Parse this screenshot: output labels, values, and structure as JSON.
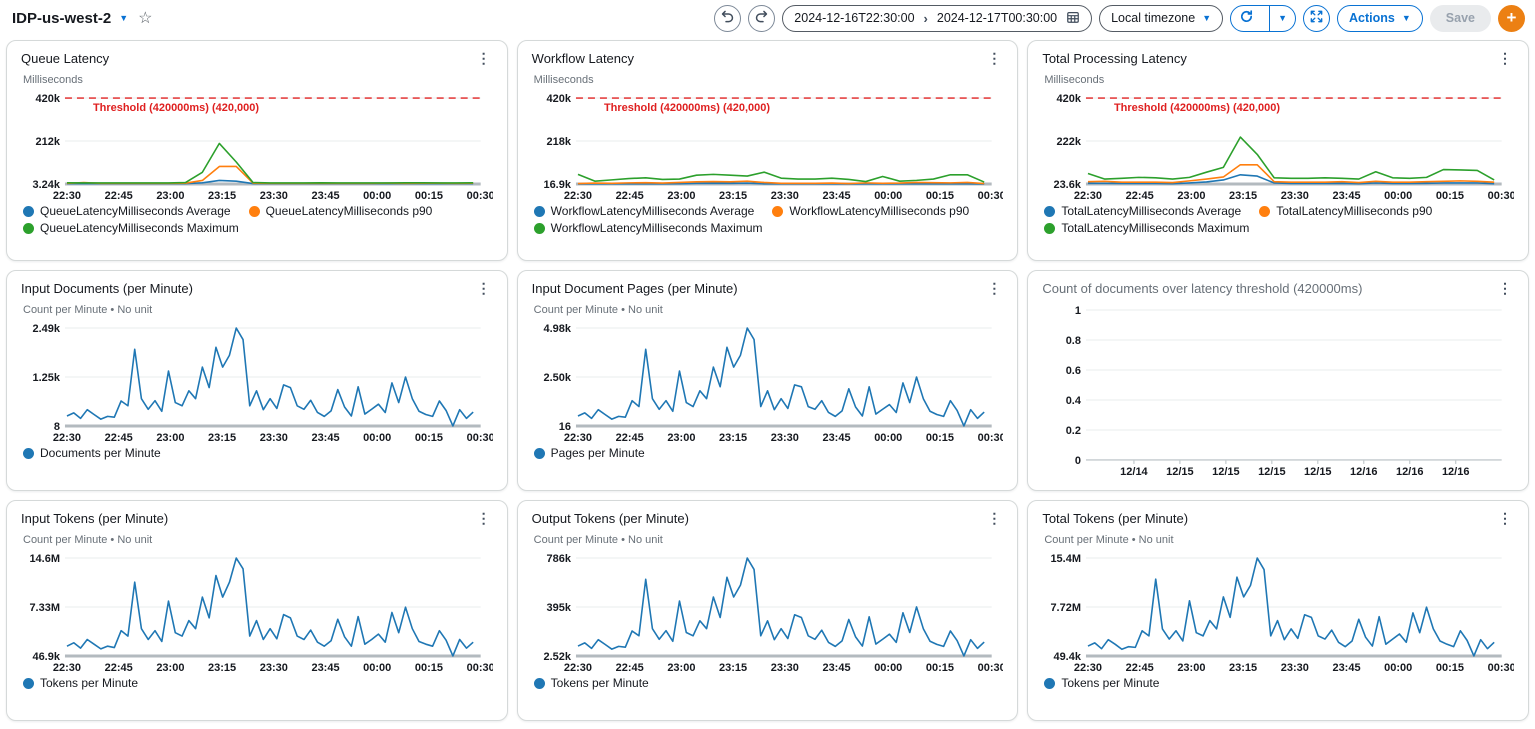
{
  "header": {
    "dashboard_name": "IDP-us-west-2",
    "time_range": {
      "start": "2024-12-16T22:30:00",
      "separator": "›",
      "end": "2024-12-17T00:30:00"
    },
    "timezone_label": "Local timezone",
    "actions_label": "Actions",
    "save_label": "Save",
    "add_label": "+"
  },
  "icons": {
    "caret": "▼",
    "star": "☆",
    "kebab": "⋮"
  },
  "colors": {
    "accent": "#0972d3",
    "add_button": "#ec8013",
    "threshold": "#df2020",
    "series_blue": "#1f77b4",
    "series_orange": "#ff7f0e",
    "series_green": "#2ca02c"
  },
  "charts": [
    {
      "id": "queue-latency",
      "title": "Queue Latency",
      "subtitle": "Milliseconds",
      "type": "line",
      "h": 112,
      "ylim": [
        3240,
        420000
      ],
      "yticks": [
        {
          "label": "420k",
          "value": 420000
        },
        {
          "label": "212k",
          "value": 211620
        },
        {
          "label": "3.24k",
          "value": 3240
        }
      ],
      "xticks": [
        "22:30",
        "22:45",
        "23:00",
        "23:15",
        "23:30",
        "23:45",
        "00:00",
        "00:15",
        "00:30"
      ],
      "threshold": {
        "label": "Threshold (420000ms) (420,000)",
        "value": 420000
      },
      "series": [
        {
          "name": "QueueLatencyMilliseconds Average",
          "color": "#1f77b4",
          "values": [
            5000,
            5000,
            5000,
            5000,
            5000,
            5000,
            5000,
            5000,
            9000,
            20000,
            17000,
            5000,
            5000,
            5000,
            5000,
            5000,
            5000,
            5000,
            5000,
            5000,
            5000,
            5000,
            5000,
            5000,
            5000
          ]
        },
        {
          "name": "QueueLatencyMilliseconds p90",
          "color": "#ff7f0e",
          "values": [
            6000,
            10000,
            6000,
            6000,
            6000,
            6000,
            6000,
            7000,
            20000,
            88000,
            88000,
            7000,
            6000,
            6000,
            6000,
            7000,
            6000,
            6000,
            6000,
            7000,
            6000,
            7000,
            7000,
            6000,
            7000
          ]
        },
        {
          "name": "QueueLatencyMilliseconds Maximum",
          "color": "#2ca02c",
          "values": [
            9000,
            8000,
            8000,
            8000,
            8000,
            8000,
            8000,
            10000,
            60000,
            200000,
            110000,
            10000,
            8000,
            8000,
            8000,
            9000,
            8000,
            8000,
            8000,
            8000,
            9000,
            9000,
            8000,
            8000,
            9000
          ]
        }
      ]
    },
    {
      "id": "workflow-latency",
      "title": "Workflow Latency",
      "subtitle": "Milliseconds",
      "type": "line",
      "h": 112,
      "ylim": [
        16900,
        420000
      ],
      "yticks": [
        {
          "label": "420k",
          "value": 420000
        },
        {
          "label": "218k",
          "value": 218450
        },
        {
          "label": "16.9k",
          "value": 16900
        }
      ],
      "xticks": [
        "22:30",
        "22:45",
        "23:00",
        "23:15",
        "23:30",
        "23:45",
        "00:00",
        "00:15",
        "00:30"
      ],
      "threshold": {
        "label": "Threshold (420000ms) (420,000)",
        "value": 420000
      },
      "series": [
        {
          "name": "WorkflowLatencyMilliseconds Average",
          "color": "#1f77b4",
          "values": [
            17000,
            17500,
            18000,
            18000,
            18000,
            18000,
            18500,
            19500,
            20000,
            20000,
            21000,
            18000,
            17500,
            17500,
            17500,
            18000,
            17000,
            18000,
            17500,
            17500,
            18000,
            18000,
            18000,
            18000,
            17000
          ]
        },
        {
          "name": "WorkflowLatencyMilliseconds p90",
          "color": "#ff7f0e",
          "values": [
            19000,
            21000,
            20000,
            22000,
            23000,
            21000,
            24000,
            27000,
            28000,
            27000,
            30000,
            24000,
            20000,
            20000,
            20000,
            21000,
            19000,
            22000,
            20000,
            21000,
            24000,
            23000,
            22000,
            24000,
            19000
          ]
        },
        {
          "name": "WorkflowLatencyMilliseconds Maximum",
          "color": "#2ca02c",
          "values": [
            62000,
            30000,
            36000,
            42000,
            46000,
            38000,
            40000,
            58000,
            62000,
            58000,
            54000,
            72000,
            44000,
            40000,
            40000,
            44000,
            38000,
            28000,
            52000,
            30000,
            34000,
            40000,
            60000,
            60000,
            26000
          ]
        }
      ]
    },
    {
      "id": "total-processing-latency",
      "title": "Total Processing Latency",
      "subtitle": "Milliseconds",
      "type": "line",
      "h": 112,
      "ylim": [
        23600,
        420000
      ],
      "yticks": [
        {
          "label": "420k",
          "value": 420000
        },
        {
          "label": "222k",
          "value": 221800
        },
        {
          "label": "23.6k",
          "value": 23600
        }
      ],
      "xticks": [
        "22:30",
        "22:45",
        "23:00",
        "23:15",
        "23:30",
        "23:45",
        "00:00",
        "00:15",
        "00:30"
      ],
      "threshold": {
        "label": "Threshold (420000ms) (420,000)",
        "value": 420000
      },
      "series": [
        {
          "name": "TotalLatencyMilliseconds Average",
          "color": "#1f77b4",
          "values": [
            27000,
            27000,
            26000,
            26000,
            26000,
            25000,
            28000,
            33000,
            42000,
            66000,
            60000,
            28000,
            26000,
            26000,
            26000,
            27000,
            25000,
            28000,
            26000,
            26000,
            27000,
            28000,
            28000,
            28000,
            25000
          ]
        },
        {
          "name": "TotalLatencyMilliseconds p90",
          "color": "#ff7f0e",
          "values": [
            34000,
            36000,
            32000,
            32000,
            32000,
            30000,
            38000,
            46000,
            56000,
            112000,
            112000,
            34000,
            32000,
            32000,
            32000,
            34000,
            30000,
            36000,
            32000,
            32000,
            34000,
            36000,
            38000,
            36000,
            32000
          ]
        },
        {
          "name": "TotalLatencyMilliseconds Maximum",
          "color": "#2ca02c",
          "values": [
            72000,
            46000,
            50000,
            54000,
            52000,
            46000,
            54000,
            78000,
            100000,
            240000,
            160000,
            52000,
            50000,
            50000,
            52000,
            50000,
            46000,
            80000,
            52000,
            50000,
            54000,
            90000,
            88000,
            86000,
            42000
          ]
        }
      ]
    },
    {
      "id": "input-documents",
      "title": "Input Documents (per Minute)",
      "subtitle": "Count per Minute • No unit",
      "type": "line",
      "h": 124,
      "ylim": [
        8,
        2490
      ],
      "yticks": [
        {
          "label": "2.49k",
          "value": 2490
        },
        {
          "label": "1.25k",
          "value": 1249
        },
        {
          "label": "8",
          "value": 8
        }
      ],
      "xticks": [
        "22:30",
        "22:45",
        "23:00",
        "23:15",
        "23:30",
        "23:45",
        "00:00",
        "00:15",
        "00:30"
      ],
      "series": [
        {
          "name": "Documents per Minute",
          "color": "#1f77b4",
          "values": [
            260,
            340,
            200,
            420,
            300,
            180,
            250,
            230,
            640,
            520,
            1950,
            700,
            430,
            650,
            380,
            1400,
            600,
            520,
            900,
            700,
            1500,
            980,
            2000,
            1500,
            1800,
            2490,
            2200,
            520,
            900,
            420,
            700,
            450,
            1050,
            980,
            520,
            430,
            660,
            350,
            250,
            390,
            930,
            490,
            260,
            1000,
            310,
            430,
            560,
            350,
            1100,
            600,
            1250,
            700,
            380,
            300,
            250,
            640,
            400,
            8,
            420,
            200,
            360
          ]
        }
      ]
    },
    {
      "id": "input-document-pages",
      "title": "Input Document Pages (per Minute)",
      "subtitle": "Count per Minute • No unit",
      "type": "line",
      "h": 124,
      "ylim": [
        16,
        4980
      ],
      "yticks": [
        {
          "label": "4.98k",
          "value": 4980
        },
        {
          "label": "2.50k",
          "value": 2498
        },
        {
          "label": "16",
          "value": 16
        }
      ],
      "xticks": [
        "22:30",
        "22:45",
        "23:00",
        "23:15",
        "23:30",
        "23:45",
        "00:00",
        "00:15",
        "00:30"
      ],
      "series": [
        {
          "name": "Pages per Minute",
          "color": "#1f77b4",
          "values": [
            520,
            680,
            400,
            840,
            600,
            360,
            500,
            460,
            1300,
            1000,
            3900,
            1400,
            860,
            1300,
            760,
            2800,
            1200,
            1000,
            1800,
            1400,
            3000,
            2000,
            4000,
            3000,
            3600,
            4980,
            4400,
            1000,
            1800,
            840,
            1400,
            900,
            2100,
            2000,
            1000,
            860,
            1300,
            700,
            500,
            780,
            1900,
            980,
            520,
            2000,
            620,
            860,
            1100,
            700,
            2200,
            1200,
            2500,
            1400,
            760,
            600,
            500,
            1300,
            800,
            16,
            840,
            400,
            720
          ]
        }
      ]
    },
    {
      "id": "docs-over-threshold",
      "title": "Count of documents over latency threshold (420000ms)",
      "muted": true,
      "type": "line",
      "h": 176,
      "ylim": [
        0,
        1
      ],
      "xmode": "inset",
      "yticks": [
        {
          "label": "1",
          "value": 1
        },
        {
          "label": "0.8",
          "value": 0.8
        },
        {
          "label": "0.6",
          "value": 0.6
        },
        {
          "label": "0.4",
          "value": 0.4
        },
        {
          "label": "0.2",
          "value": 0.2
        },
        {
          "label": "0",
          "value": 0
        }
      ],
      "xticks": [
        "12/14",
        "12/15",
        "12/15",
        "12/15",
        "12/15",
        "12/16",
        "12/16",
        "12/16"
      ],
      "series": []
    },
    {
      "id": "input-tokens",
      "title": "Input Tokens (per Minute)",
      "subtitle": "Count per Minute • No unit",
      "type": "line",
      "h": 124,
      "ylim": [
        46900,
        14600000
      ],
      "yticks": [
        {
          "label": "14.6M",
          "value": 14600000
        },
        {
          "label": "7.33M",
          "value": 7323450
        },
        {
          "label": "46.9k",
          "value": 46900
        }
      ],
      "xticks": [
        "22:30",
        "22:45",
        "23:00",
        "23:15",
        "23:30",
        "23:45",
        "00:00",
        "00:15",
        "00:30"
      ],
      "series": [
        {
          "name": "Tokens per Minute",
          "color": "#1f77b4",
          "values": [
            1500000,
            2000000,
            1200000,
            2500000,
            1800000,
            1100000,
            1500000,
            1300000,
            3800000,
            3000000,
            11000000,
            4100000,
            2500000,
            3800000,
            2200000,
            8200000,
            3500000,
            3000000,
            5300000,
            4100000,
            8800000,
            5700000,
            12000000,
            8800000,
            11000000,
            14600000,
            13000000,
            3000000,
            5300000,
            2500000,
            4100000,
            2600000,
            6200000,
            5700000,
            3000000,
            2500000,
            3900000,
            2100000,
            1500000,
            2300000,
            5500000,
            2900000,
            1500000,
            5900000,
            1800000,
            2500000,
            3300000,
            2100000,
            6500000,
            3500000,
            7300000,
            4100000,
            2200000,
            1800000,
            1500000,
            3800000,
            2400000,
            46900,
            2500000,
            1200000,
            2100000
          ]
        }
      ]
    },
    {
      "id": "output-tokens",
      "title": "Output Tokens (per Minute)",
      "subtitle": "Count per Minute • No unit",
      "type": "line",
      "h": 124,
      "ylim": [
        2520,
        786000
      ],
      "yticks": [
        {
          "label": "786k",
          "value": 786000
        },
        {
          "label": "395k",
          "value": 394260
        },
        {
          "label": "2.52k",
          "value": 2520
        }
      ],
      "xticks": [
        "22:30",
        "22:45",
        "23:00",
        "23:15",
        "23:30",
        "23:45",
        "00:00",
        "00:15",
        "00:30"
      ],
      "series": [
        {
          "name": "Tokens per Minute",
          "color": "#1f77b4",
          "values": [
            82000,
            107000,
            63000,
            133000,
            95000,
            57000,
            79000,
            73000,
            202000,
            164000,
            616000,
            221000,
            136000,
            205000,
            120000,
            442000,
            190000,
            164000,
            284000,
            221000,
            474000,
            310000,
            632000,
            474000,
            569000,
            786000,
            695000,
            164000,
            284000,
            133000,
            221000,
            142000,
            332000,
            310000,
            164000,
            136000,
            209000,
            111000,
            79000,
            123000,
            294000,
            155000,
            82000,
            316000,
            98000,
            136000,
            177000,
            111000,
            348000,
            190000,
            395000,
            221000,
            120000,
            95000,
            79000,
            202000,
            126000,
            2520,
            133000,
            63000,
            114000
          ]
        }
      ]
    },
    {
      "id": "total-tokens",
      "title": "Total Tokens (per Minute)",
      "subtitle": "Count per Minute • No unit",
      "type": "line",
      "h": 124,
      "ylim": [
        49400,
        15400000
      ],
      "yticks": [
        {
          "label": "15.4M",
          "value": 15400000
        },
        {
          "label": "7.72M",
          "value": 7724700
        },
        {
          "label": "49.4k",
          "value": 49400
        }
      ],
      "xticks": [
        "22:30",
        "22:45",
        "23:00",
        "23:15",
        "23:30",
        "23:45",
        "00:00",
        "00:15",
        "00:30"
      ],
      "series": [
        {
          "name": "Tokens per Minute",
          "color": "#1f77b4",
          "values": [
            1600000,
            2100000,
            1200000,
            2600000,
            1900000,
            1100000,
            1500000,
            1400000,
            4000000,
            3200000,
            12100000,
            4300000,
            2700000,
            4000000,
            2400000,
            8700000,
            3700000,
            3200000,
            5600000,
            4300000,
            9300000,
            6100000,
            12400000,
            9300000,
            11100000,
            15400000,
            13600000,
            3200000,
            5600000,
            2600000,
            4300000,
            2800000,
            6500000,
            6100000,
            3200000,
            2700000,
            4100000,
            2200000,
            1500000,
            2400000,
            5800000,
            3000000,
            1600000,
            6200000,
            1900000,
            2700000,
            3500000,
            2200000,
            6800000,
            3700000,
            7700000,
            4300000,
            2400000,
            1900000,
            1500000,
            4000000,
            2500000,
            49400,
            2600000,
            1200000,
            2200000
          ]
        }
      ]
    }
  ]
}
